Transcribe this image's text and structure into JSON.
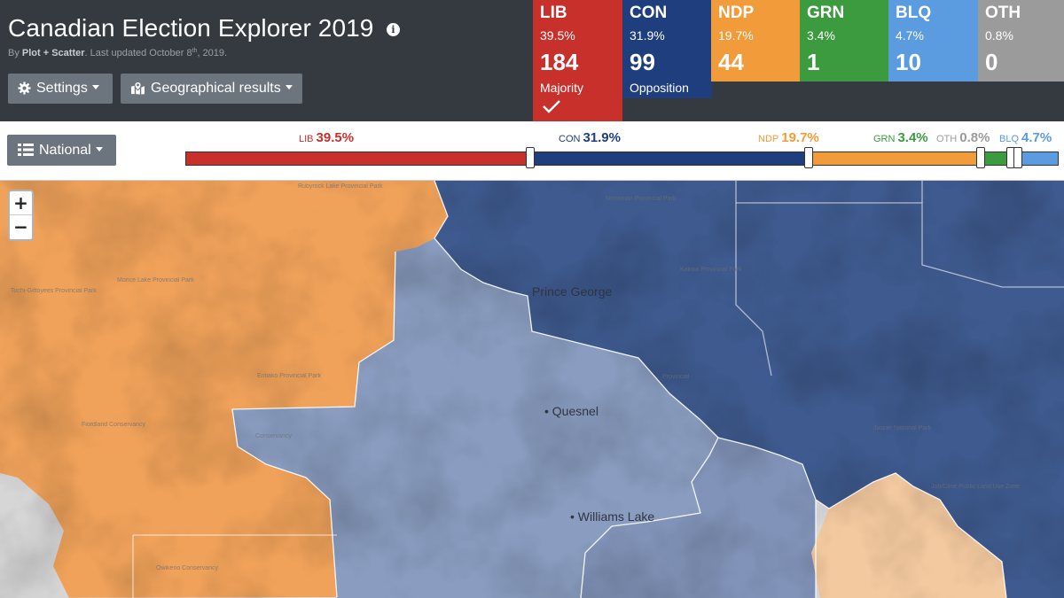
{
  "app": {
    "title": "Canadian Election Explorer 2019",
    "byline_prefix": "By ",
    "byline_author": "Plot + Scatter",
    "byline_updated": ". Last updated October 8",
    "byline_sup": "th",
    "byline_year": ", 2019."
  },
  "controls": {
    "settings_label": "Settings",
    "geo_label": "Geographical results",
    "region_label": "National"
  },
  "colors": {
    "lib": "#c8302c",
    "con": "#1f3e7d",
    "ndp": "#f29b3b",
    "grn": "#3c9a3f",
    "blq": "#5b9be0",
    "oth": "#9b9b9b"
  },
  "parties": [
    {
      "abbr": "LIB",
      "pct": "39.5%",
      "seats": "184",
      "status": "Majority",
      "color": "#c8302c"
    },
    {
      "abbr": "CON",
      "pct": "31.9%",
      "seats": "99",
      "status": "Opposition",
      "color": "#1f3e7d"
    },
    {
      "abbr": "NDP",
      "pct": "19.7%",
      "seats": "44",
      "status": "",
      "color": "#f29b3b"
    },
    {
      "abbr": "GRN",
      "pct": "3.4%",
      "seats": "1",
      "status": "",
      "color": "#3c9a3f"
    },
    {
      "abbr": "BLQ",
      "pct": "4.7%",
      "seats": "10",
      "status": "",
      "color": "#5b9be0"
    },
    {
      "abbr": "OTH",
      "pct": "0.8%",
      "seats": "0",
      "status": "",
      "color": "#9b9b9b"
    }
  ],
  "vote_bar": {
    "order": [
      "LIB",
      "CON",
      "NDP",
      "GRN",
      "OTH",
      "BLQ"
    ],
    "shares": [
      39.5,
      31.9,
      19.7,
      3.4,
      0.8,
      4.7
    ],
    "labels": [
      {
        "party": "LIB",
        "value": "39.5%"
      },
      {
        "party": "CON",
        "value": "31.9%"
      },
      {
        "party": "NDP",
        "value": "19.7%"
      },
      {
        "party": "GRN",
        "value": "3.4%"
      },
      {
        "party": "OTH",
        "value": "0.8%"
      },
      {
        "party": "BLQ",
        "value": "4.7%"
      }
    ]
  },
  "map": {
    "zoom_in": "+",
    "zoom_out": "−",
    "cities": [
      "Prince George",
      "Quesnel",
      "Williams Lake"
    ],
    "parks": [
      "Rubyrock Lake Provincial Park",
      "Morice Lake Provincial Park",
      "Tochi-Gittoyees Provincial Park",
      "Entiako Provincial Park",
      "Fiordland Conservancy",
      "Conservancy",
      "Owikeno Conservancy",
      "Monkman Provincial Park",
      "Kakwa Provincial Park",
      "Provincial",
      "Jasper National Park",
      "Job/Cline Public Land Use Zone"
    ]
  }
}
